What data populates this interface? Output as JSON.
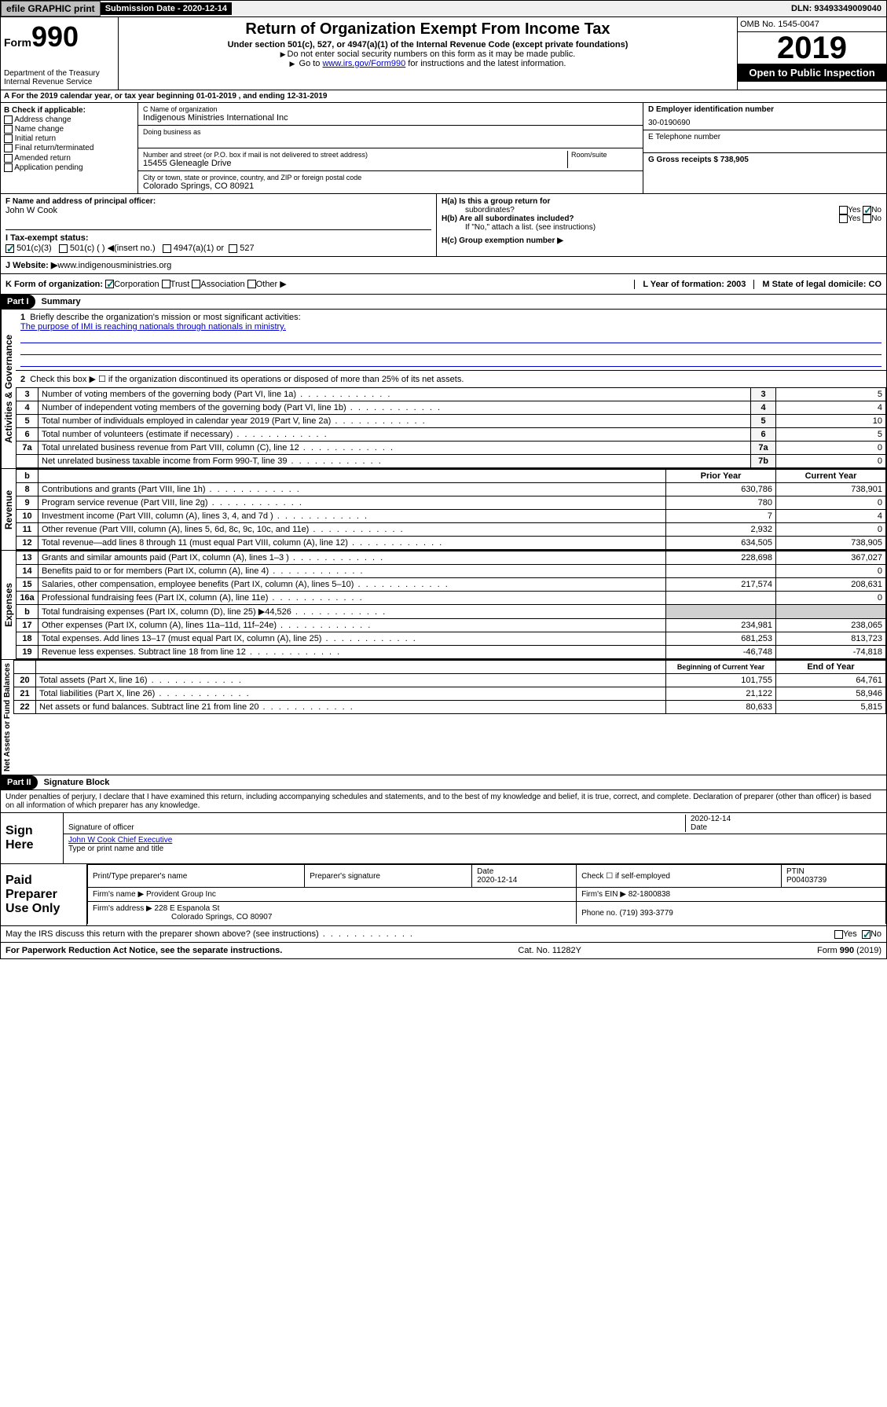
{
  "topbar": {
    "efile": "efile GRAPHIC print",
    "sub_label": "Submission Date - 2020-12-14",
    "dln": "DLN: 93493349009040"
  },
  "header": {
    "form_small": "Form",
    "form_num": "990",
    "dept": "Department of the Treasury\nInternal Revenue Service",
    "title": "Return of Organization Exempt From Income Tax",
    "subtitle": "Under section 501(c), 527, or 4947(a)(1) of the Internal Revenue Code (except private foundations)",
    "warn": "Do not enter social security numbers on this form as it may be made public.",
    "goto_pre": "Go to ",
    "goto_link": "www.irs.gov/Form990",
    "goto_post": " for instructions and the latest information.",
    "omb": "OMB No. 1545-0047",
    "year": "2019",
    "open": "Open to Public Inspection"
  },
  "sectionA": "A For the 2019 calendar year, or tax year beginning 01-01-2019    , and ending 12-31-2019",
  "sectionB": {
    "title": "B Check if applicable:",
    "items": [
      "Address change",
      "Name change",
      "Initial return",
      "Final return/terminated",
      "Amended return",
      "Application pending"
    ]
  },
  "sectionC": {
    "name_lbl": "C Name of organization",
    "name": "Indigenous Ministries International Inc",
    "dba_lbl": "Doing business as",
    "addr_lbl": "Number and street (or P.O. box if mail is not delivered to street address)",
    "room_lbl": "Room/suite",
    "addr": "15455 Gleneagle Drive",
    "city_lbl": "City or town, state or province, country, and ZIP or foreign postal code",
    "city": "Colorado Springs, CO  80921"
  },
  "sectionD": {
    "lbl": "D Employer identification number",
    "val": "30-0190690"
  },
  "sectionE": {
    "lbl": "E Telephone number"
  },
  "sectionG": {
    "lbl": "G Gross receipts $ 738,905"
  },
  "sectionF": {
    "lbl": "F  Name and address of principal officer:",
    "val": "John W Cook"
  },
  "sectionH": {
    "a": "H(a)  Is this a group return for",
    "a2": "subordinates?",
    "b": "H(b)  Are all subordinates included?",
    "b2": "If \"No,\" attach a list. (see instructions)",
    "c": "H(c)  Group exemption number ▶"
  },
  "sectionI": {
    "lbl": "I      Tax-exempt status:",
    "opts": [
      "501(c)(3)",
      "501(c) (  ) ◀(insert no.)",
      "4947(a)(1) or",
      "527"
    ]
  },
  "sectionJ": {
    "lbl": "J     Website: ▶",
    "val": "  www.indigenousministries.org"
  },
  "sectionK": {
    "lbl": "K Form of organization:",
    "opts": [
      "Corporation",
      "Trust",
      "Association",
      "Other ▶"
    ]
  },
  "sectionL": {
    "lbl": "L Year of formation: 2003"
  },
  "sectionM": {
    "lbl": "M State of legal domicile: CO"
  },
  "part1": {
    "header": "Part I",
    "title": "Summary",
    "q1_lbl": "Briefly describe the organization's mission or most significant activities:",
    "q1_val": "The purpose of IMI is reaching nationals through nationals in ministry.",
    "q2": "Check this box ▶ ☐  if the organization discontinued its operations or disposed of more than 25% of its net assets.",
    "rows_gov": [
      {
        "n": "3",
        "t": "Number of voting members of the governing body (Part VI, line 1a)",
        "b": "3",
        "v": "5"
      },
      {
        "n": "4",
        "t": "Number of independent voting members of the governing body (Part VI, line 1b)",
        "b": "4",
        "v": "4"
      },
      {
        "n": "5",
        "t": "Total number of individuals employed in calendar year 2019 (Part V, line 2a)",
        "b": "5",
        "v": "10"
      },
      {
        "n": "6",
        "t": "Total number of volunteers (estimate if necessary)",
        "b": "6",
        "v": "5"
      },
      {
        "n": "7a",
        "t": "Total unrelated business revenue from Part VIII, column (C), line 12",
        "b": "7a",
        "v": "0"
      },
      {
        "n": "",
        "t": "Net unrelated business taxable income from Form 990-T, line 39",
        "b": "7b",
        "v": "0"
      }
    ],
    "col_hdr_b": "b",
    "col_prior": "Prior Year",
    "col_current": "Current Year",
    "rows_rev": [
      {
        "n": "8",
        "t": "Contributions and grants (Part VIII, line 1h)",
        "p": "630,786",
        "c": "738,901"
      },
      {
        "n": "9",
        "t": "Program service revenue (Part VIII, line 2g)",
        "p": "780",
        "c": "0"
      },
      {
        "n": "10",
        "t": "Investment income (Part VIII, column (A), lines 3, 4, and 7d )",
        "p": "7",
        "c": "4"
      },
      {
        "n": "11",
        "t": "Other revenue (Part VIII, column (A), lines 5, 6d, 8c, 9c, 10c, and 11e)",
        "p": "2,932",
        "c": "0"
      },
      {
        "n": "12",
        "t": "Total revenue—add lines 8 through 11 (must equal Part VIII, column (A), line 12)",
        "p": "634,505",
        "c": "738,905"
      }
    ],
    "rows_exp": [
      {
        "n": "13",
        "t": "Grants and similar amounts paid (Part IX, column (A), lines 1–3 )",
        "p": "228,698",
        "c": "367,027"
      },
      {
        "n": "14",
        "t": "Benefits paid to or for members (Part IX, column (A), line 4)",
        "p": "",
        "c": "0"
      },
      {
        "n": "15",
        "t": "Salaries, other compensation, employee benefits (Part IX, column (A), lines 5–10)",
        "p": "217,574",
        "c": "208,631"
      },
      {
        "n": "16a",
        "t": "Professional fundraising fees (Part IX, column (A), line 11e)",
        "p": "",
        "c": "0"
      },
      {
        "n": "b",
        "t": "Total fundraising expenses (Part IX, column (D), line 25) ▶44,526",
        "p": "",
        "c": ""
      },
      {
        "n": "17",
        "t": "Other expenses (Part IX, column (A), lines 11a–11d, 11f–24e)",
        "p": "234,981",
        "c": "238,065"
      },
      {
        "n": "18",
        "t": "Total expenses. Add lines 13–17 (must equal Part IX, column (A), line 25)",
        "p": "681,253",
        "c": "813,723"
      },
      {
        "n": "19",
        "t": "Revenue less expenses. Subtract line 18 from line 12",
        "p": "-46,748",
        "c": "-74,818"
      }
    ],
    "col_begin": "Beginning of Current Year",
    "col_end": "End of Year",
    "rows_net": [
      {
        "n": "20",
        "t": "Total assets (Part X, line 16)",
        "p": "101,755",
        "c": "64,761"
      },
      {
        "n": "21",
        "t": "Total liabilities (Part X, line 26)",
        "p": "21,122",
        "c": "58,946"
      },
      {
        "n": "22",
        "t": "Net assets or fund balances. Subtract line 21 from line 20",
        "p": "80,633",
        "c": "5,815"
      }
    ],
    "vlabels": [
      "Activities & Governance",
      "Revenue",
      "Expenses",
      "Net Assets or Fund Balances"
    ]
  },
  "part2": {
    "header": "Part II",
    "title": "Signature Block",
    "perjury": "Under penalties of perjury, I declare that I have examined this return, including accompanying schedules and statements, and to the best of my knowledge and belief, it is true, correct, and complete. Declaration of preparer (other than officer) is based on all information of which preparer has any knowledge.",
    "sign_here": "Sign Here",
    "sig_officer": "Signature of officer",
    "sig_date": "2020-12-14",
    "sig_date_lbl": "Date",
    "sig_name": "John W Cook  Chief Executive",
    "sig_name_lbl": "Type or print name and title",
    "paid": "Paid Preparer Use Only",
    "prep_cols": [
      "Print/Type preparer's name",
      "Preparer's signature",
      "Date",
      "Check ☐ if self-employed",
      "PTIN"
    ],
    "prep_date": "2020-12-14",
    "prep_ptin": "P00403739",
    "firm_name_lbl": "Firm's name     ▶",
    "firm_name": "Provident Group Inc",
    "firm_ein_lbl": "Firm's EIN ▶",
    "firm_ein": "82-1800838",
    "firm_addr_lbl": "Firm's address ▶",
    "firm_addr": "228 E Espanola St",
    "firm_city": "Colorado Springs, CO  80907",
    "phone_lbl": "Phone no.",
    "phone": "(719) 393-3779",
    "discuss": "May the IRS discuss this return with the preparer shown above? (see instructions)"
  },
  "footer": {
    "pra": "For Paperwork Reduction Act Notice, see the separate instructions.",
    "cat": "Cat. No. 11282Y",
    "form": "Form 990 (2019)"
  },
  "yn": {
    "yes": "Yes",
    "no": "No"
  }
}
